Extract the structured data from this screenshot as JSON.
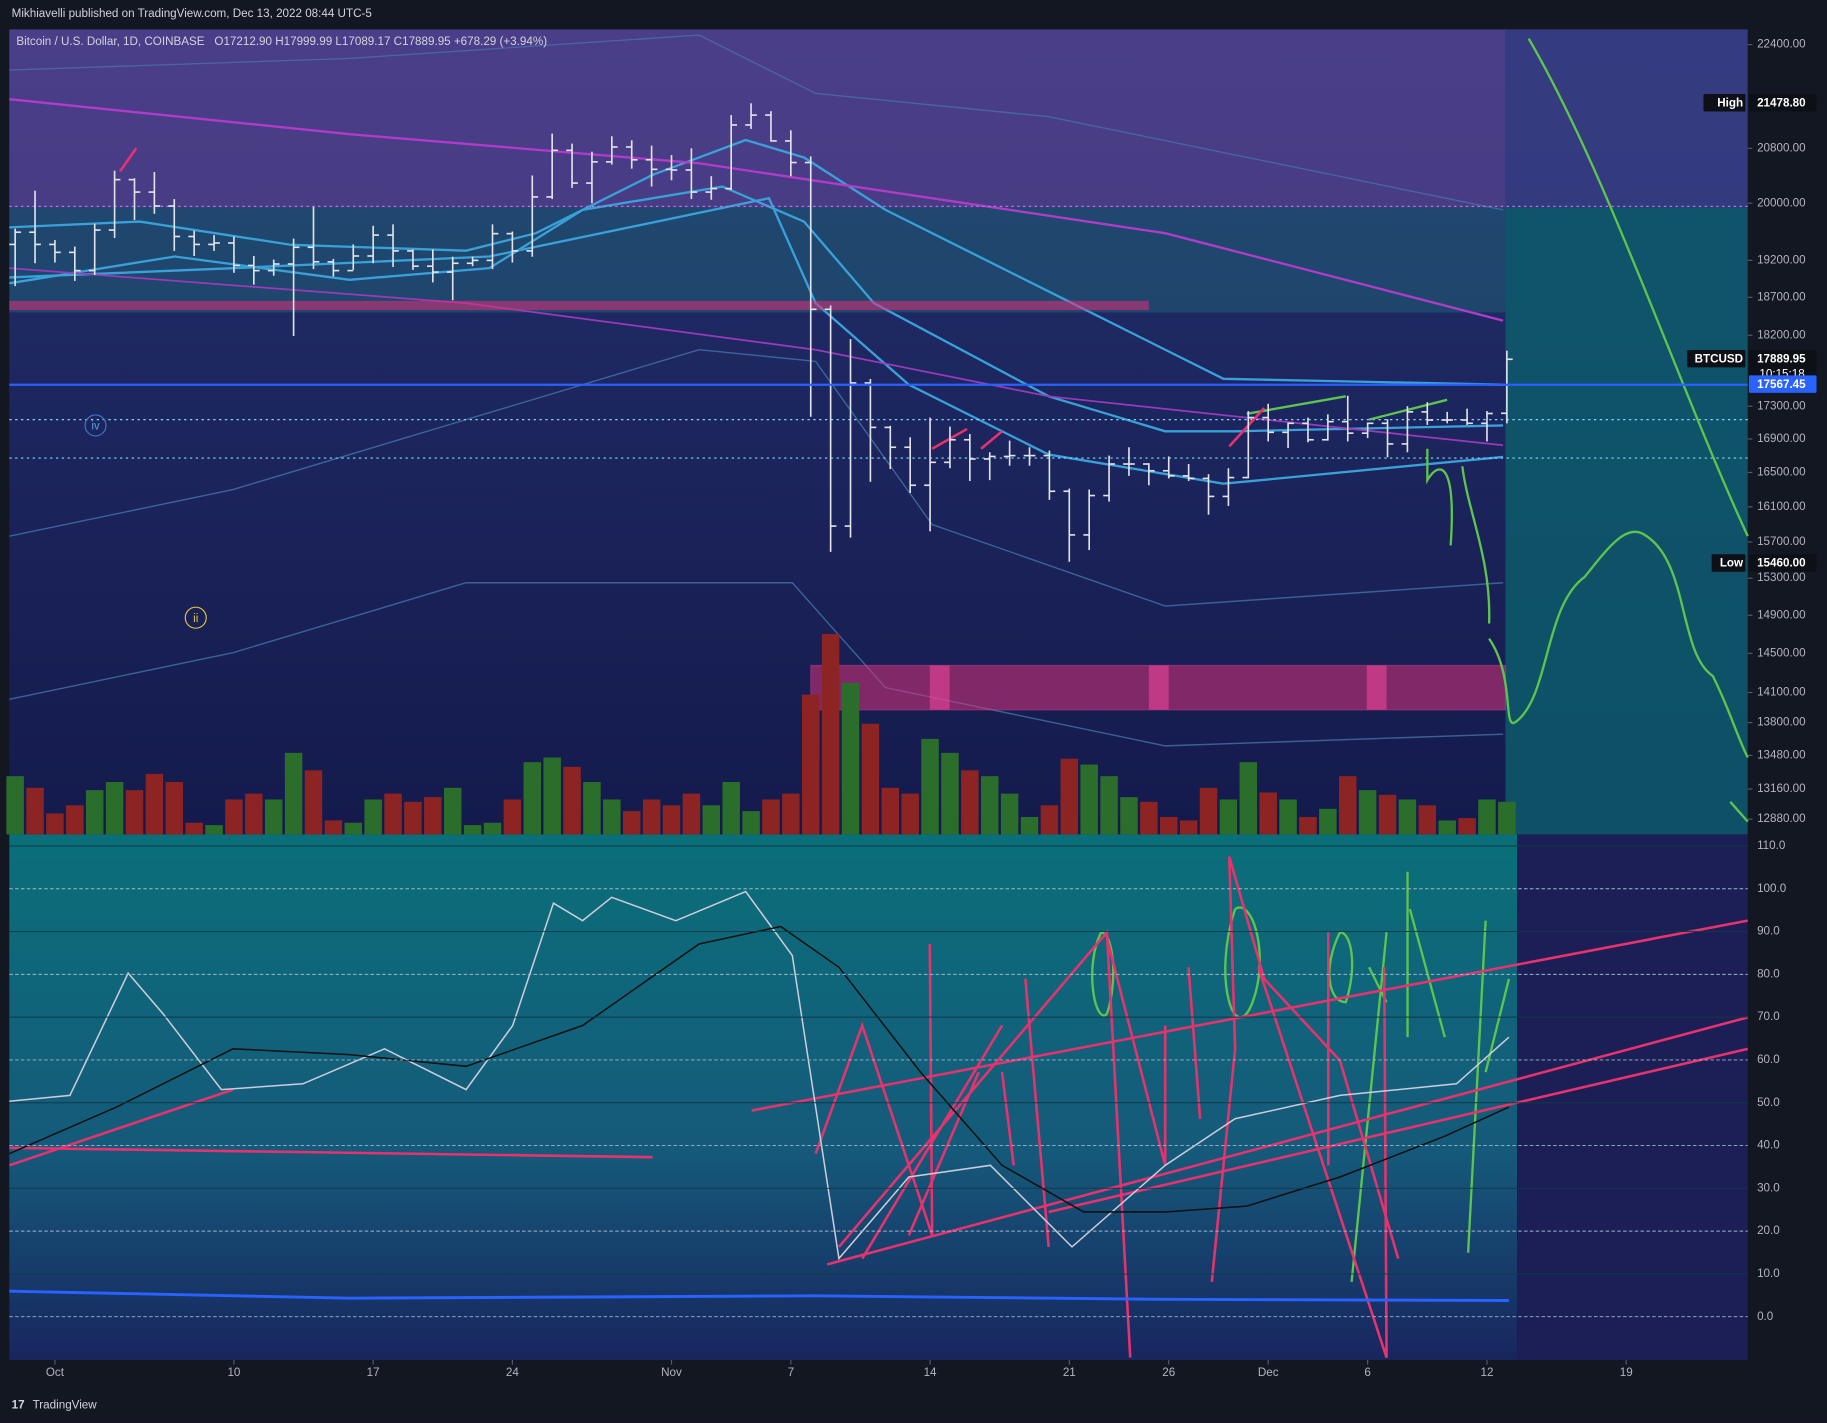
{
  "header": {
    "published": "Mikhiavelli published on TradingView.com, Dec 13, 2022 08:44 UTC-5",
    "symbol": "Bitcoin / U.S. Dollar, 1D, COINBASE",
    "ohlc": "O17212.90 H17999.99 L17089.17 C17889.95 +678.29 (+3.94%)",
    "wave_labels": [
      "iv",
      "ii"
    ],
    "footer": "TradingView"
  },
  "chart_data": [
    {
      "type": "ohlc",
      "log": true,
      "grid": false,
      "bar_color": "#e0e3eb",
      "up_color": "#2b6e2c",
      "down_color": "#8c2424",
      "x": [
        "2022-09-29",
        "2022-09-30",
        "2022-10-01",
        "2022-10-02",
        "2022-10-03",
        "2022-10-04",
        "2022-10-05",
        "2022-10-06",
        "2022-10-07",
        "2022-10-08",
        "2022-10-09",
        "2022-10-10",
        "2022-10-11",
        "2022-10-12",
        "2022-10-13",
        "2022-10-14",
        "2022-10-15",
        "2022-10-16",
        "2022-10-17",
        "2022-10-18",
        "2022-10-19",
        "2022-10-20",
        "2022-10-21",
        "2022-10-22",
        "2022-10-23",
        "2022-10-24",
        "2022-10-25",
        "2022-10-26",
        "2022-10-27",
        "2022-10-28",
        "2022-10-29",
        "2022-10-30",
        "2022-10-31",
        "2022-11-01",
        "2022-11-02",
        "2022-11-03",
        "2022-11-04",
        "2022-11-05",
        "2022-11-06",
        "2022-11-07",
        "2022-11-08",
        "2022-11-09",
        "2022-11-10",
        "2022-11-11",
        "2022-11-12",
        "2022-11-13",
        "2022-11-14",
        "2022-11-15",
        "2022-11-16",
        "2022-11-17",
        "2022-11-18",
        "2022-11-19",
        "2022-11-20",
        "2022-11-21",
        "2022-11-22",
        "2022-11-23",
        "2022-11-24",
        "2022-11-25",
        "2022-11-26",
        "2022-11-27",
        "2022-11-28",
        "2022-11-29",
        "2022-11-30",
        "2022-12-01",
        "2022-12-02",
        "2022-12-03",
        "2022-12-04",
        "2022-12-05",
        "2022-12-06",
        "2022-12-07",
        "2022-12-08",
        "2022-12-09",
        "2022-12-10",
        "2022-12-11",
        "2022-12-12",
        "2022-12-13"
      ],
      "open": [
        19420,
        19590,
        19420,
        19310,
        19060,
        19620,
        20340,
        20160,
        19960,
        19530,
        19420,
        19440,
        19130,
        19060,
        19150,
        19380,
        19180,
        19060,
        19260,
        19550,
        19330,
        19120,
        19040,
        19160,
        19200,
        19570,
        19330,
        20090,
        20770,
        20290,
        20600,
        20820,
        20630,
        20490,
        20480,
        20160,
        20210,
        21150,
        21300,
        20910,
        20590,
        18540,
        15880,
        17590,
        17040,
        16800,
        16350,
        16620,
        16890,
        16660,
        16690,
        16700,
        16700,
        16280,
        15780,
        16230,
        16600,
        16600,
        16520,
        16460,
        16430,
        16220,
        16440,
        17160,
        16980,
        17090,
        16890,
        17110,
        16970,
        17090,
        16840,
        17230,
        17130,
        17130,
        17090,
        17212.9
      ],
      "high": [
        19640,
        20180,
        19480,
        19390,
        19710,
        20470,
        20360,
        20450,
        20060,
        19610,
        19550,
        19530,
        19260,
        19210,
        19500,
        19950,
        19220,
        19420,
        19680,
        19700,
        19350,
        19350,
        19250,
        19250,
        19700,
        19600,
        20400,
        21020,
        20870,
        20750,
        20980,
        20920,
        20840,
        20700,
        20800,
        20390,
        21300,
        21480,
        21360,
        21070,
        20680,
        18590,
        18150,
        17640,
        17060,
        16920,
        17160,
        17050,
        16960,
        16740,
        16880,
        16800,
        16760,
        16310,
        16300,
        16700,
        16800,
        16610,
        16690,
        16600,
        16480,
        16550,
        17240,
        17330,
        17100,
        17160,
        17200,
        17430,
        17100,
        17140,
        17300,
        17350,
        17230,
        17270,
        17240,
        17999.99
      ],
      "low": [
        18850,
        19160,
        19170,
        18920,
        19000,
        19510,
        19760,
        19850,
        19330,
        19260,
        19330,
        19030,
        18870,
        18990,
        18190,
        19080,
        18980,
        19070,
        19160,
        19110,
        19070,
        18900,
        18660,
        19120,
        19080,
        19170,
        19250,
        20060,
        20220,
        20000,
        20560,
        20500,
        20240,
        20330,
        20060,
        20050,
        20190,
        21090,
        20900,
        20390,
        17170,
        15590,
        15750,
        16390,
        16540,
        16260,
        15820,
        16550,
        16400,
        16410,
        16580,
        16580,
        16180,
        15480,
        15610,
        16160,
        16460,
        16350,
        16430,
        16400,
        16010,
        16110,
        16430,
        16870,
        16790,
        16860,
        16880,
        16870,
        16910,
        16680,
        16740,
        17070,
        17090,
        17070,
        16870,
        17089.17
      ],
      "close": [
        19590,
        19420,
        19310,
        19060,
        19620,
        20340,
        20160,
        19960,
        19530,
        19420,
        19440,
        19130,
        19060,
        19150,
        19380,
        19180,
        19060,
        19260,
        19550,
        19330,
        19120,
        19040,
        19160,
        19200,
        19570,
        19330,
        20090,
        20770,
        20290,
        20600,
        20820,
        20630,
        20490,
        20480,
        20160,
        20210,
        21150,
        21300,
        20910,
        20590,
        18540,
        15880,
        17590,
        17040,
        16800,
        16350,
        16620,
        16890,
        16660,
        16690,
        16700,
        16700,
        16280,
        15780,
        16230,
        16600,
        16600,
        16520,
        16460,
        16430,
        16220,
        16440,
        17160,
        16980,
        17090,
        16890,
        17110,
        16970,
        17090,
        16840,
        17230,
        17130,
        17130,
        17090,
        17210,
        17889.95
      ],
      "volume": [
        50,
        40,
        18,
        25,
        38,
        45,
        38,
        52,
        45,
        10,
        8,
        30,
        35,
        30,
        70,
        55,
        12,
        10,
        30,
        35,
        28,
        32,
        40,
        8,
        10,
        30,
        62,
        66,
        58,
        45,
        30,
        20,
        30,
        25,
        35,
        25,
        45,
        20,
        30,
        35,
        120,
        172,
        130,
        95,
        40,
        35,
        82,
        70,
        55,
        50,
        35,
        15,
        25,
        65,
        60,
        50,
        32,
        28,
        15,
        12,
        40,
        30,
        62,
        36,
        30,
        15,
        22,
        50,
        38,
        34,
        30,
        25,
        12,
        14,
        30,
        28
      ],
      "ylim": [
        12740,
        22590
      ],
      "yticks": [
        {
          "value": 12880,
          "label": "12880.00"
        },
        {
          "value": 13160,
          "label": "13160.00"
        },
        {
          "value": 13480,
          "label": "13480.00"
        },
        {
          "value": 13800,
          "label": "13800.00"
        },
        {
          "value": 14100,
          "label": "14100.00"
        },
        {
          "value": 14500,
          "label": "14500.00"
        },
        {
          "value": 14900,
          "label": "14900.00"
        },
        {
          "value": 15300,
          "label": "15300.00"
        },
        {
          "value": 15700,
          "label": "15700.00"
        },
        {
          "value": 16100,
          "label": "16100.00"
        },
        {
          "value": 16500,
          "label": "16500.00"
        },
        {
          "value": 16900,
          "label": "16900.00"
        },
        {
          "value": 17300,
          "label": "17300.00"
        },
        {
          "value": 18200,
          "label": "18200.00"
        },
        {
          "value": 18700,
          "label": "18700.00"
        },
        {
          "value": 19200,
          "label": "19200.00"
        },
        {
          "value": 20000,
          "label": "20000.00"
        },
        {
          "value": 20800,
          "label": "20800.00"
        },
        {
          "value": 22400,
          "label": "22400.00"
        }
      ],
      "xticks": [
        {
          "value": "2022-10-01",
          "label": "Oct"
        },
        {
          "value": "2022-10-10",
          "label": "10"
        },
        {
          "value": "2022-10-17",
          "label": "17"
        },
        {
          "value": "2022-10-24",
          "label": "24"
        },
        {
          "value": "2022-11-01",
          "label": "Nov"
        },
        {
          "value": "2022-11-07",
          "label": "7"
        },
        {
          "value": "2022-11-14",
          "label": "14"
        },
        {
          "value": "2022-11-21",
          "label": "21"
        },
        {
          "value": "2022-11-26",
          "label": "26"
        },
        {
          "value": "2022-12-01",
          "label": "Dec"
        },
        {
          "value": "2022-12-06",
          "label": "6"
        },
        {
          "value": "2022-12-12",
          "label": "12"
        },
        {
          "value": "2022-12-19",
          "label": "19"
        }
      ],
      "annotations": [
        {
          "name": "High",
          "value": 21478.8,
          "value_label": "21478.80"
        },
        {
          "name": "BTCUSD",
          "value": 17889.95,
          "value_label": "17889.95",
          "countdown": "10:15:18"
        },
        {
          "value": 17567.45,
          "value_label": "17567.45",
          "color": "#2962ff"
        },
        {
          "name": "Low",
          "value": 15460,
          "value_label": "15460.00"
        }
      ]
    },
    {
      "type": "oscillator",
      "grid": true,
      "ylim": [
        -10.1,
        112.7
      ],
      "yticks": [
        {
          "value": 0,
          "label": "0.0"
        },
        {
          "value": 10,
          "label": "10.0"
        },
        {
          "value": 20,
          "label": "20.0"
        },
        {
          "value": 30,
          "label": "30.0"
        },
        {
          "value": 40,
          "label": "40.0"
        },
        {
          "value": 50,
          "label": "50.0"
        },
        {
          "value": 60,
          "label": "60.0"
        },
        {
          "value": 70,
          "label": "70.0"
        },
        {
          "value": 80,
          "label": "80.0"
        },
        {
          "value": 90,
          "label": "90.0"
        },
        {
          "value": 100,
          "label": "100.0"
        },
        {
          "value": 110,
          "label": "110.0"
        }
      ]
    }
  ]
}
